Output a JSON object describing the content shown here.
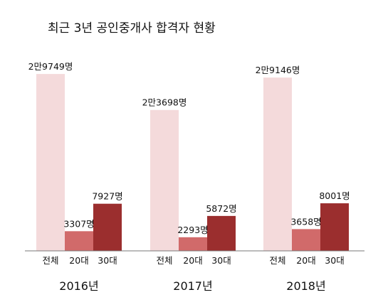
{
  "chart_data": {
    "type": "bar",
    "title": "최근 3년 공인중개사 합격자 현황",
    "groups": [
      "2016년",
      "2017년",
      "2018년"
    ],
    "categories": [
      "전체",
      "20대",
      "30대"
    ],
    "series": [
      {
        "values": [
          29749,
          3307,
          7927
        ],
        "labels": [
          "2만9749명",
          "3307명",
          "7927명"
        ]
      },
      {
        "values": [
          23698,
          2293,
          5872
        ],
        "labels": [
          "2만3698명",
          "2293명",
          "5872명"
        ]
      },
      {
        "values": [
          29146,
          3658,
          8001
        ],
        "labels": [
          "2만9146명",
          "3658명",
          "8001명"
        ]
      }
    ],
    "ylim": [
      0,
      30600
    ],
    "colors": {
      "전체": "#f4dadb",
      "20대": "#d16a6a",
      "30대": "#9b2e2e",
      "axis": "#777777"
    },
    "grid": false,
    "legend": "none"
  }
}
